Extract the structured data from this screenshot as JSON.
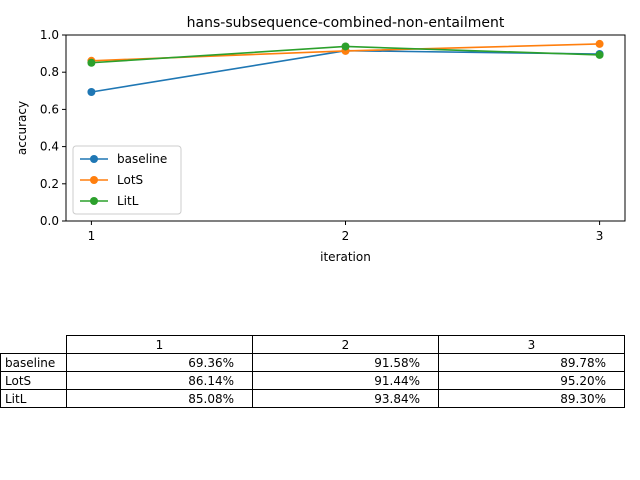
{
  "chart_data": {
    "type": "line",
    "title": "hans-subsequence-combined-non-entailment",
    "xlabel": "iteration",
    "ylabel": "accuracy",
    "x": [
      1,
      2,
      3
    ],
    "x_ticks": [
      "1",
      "2",
      "3"
    ],
    "ylim": [
      0.0,
      1.0
    ],
    "y_ticks": [
      "0.0",
      "0.2",
      "0.4",
      "0.6",
      "0.8",
      "1.0"
    ],
    "grid": false,
    "legend_position": "lower-left",
    "series": [
      {
        "name": "baseline",
        "color": "#1f77b4",
        "values": [
          0.6936,
          0.9158,
          0.8978
        ]
      },
      {
        "name": "LotS",
        "color": "#ff7f0e",
        "values": [
          0.8614,
          0.9144,
          0.952
        ]
      },
      {
        "name": "LitL",
        "color": "#2ca02c",
        "values": [
          0.8508,
          0.9384,
          0.893
        ]
      }
    ]
  },
  "table": {
    "columns": [
      "1",
      "2",
      "3"
    ],
    "rows": [
      {
        "label": "baseline",
        "cells": [
          "69.36%",
          "91.58%",
          "89.78%"
        ]
      },
      {
        "label": "LotS",
        "cells": [
          "86.14%",
          "91.44%",
          "95.20%"
        ]
      },
      {
        "label": "LitL",
        "cells": [
          "85.08%",
          "93.84%",
          "89.30%"
        ]
      }
    ]
  }
}
